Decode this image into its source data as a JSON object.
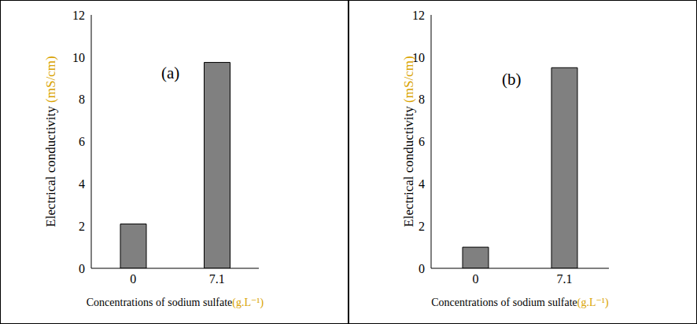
{
  "chart_data": [
    {
      "type": "bar",
      "annotation": "(a)",
      "x_label": "Concentrations of sodium sulfate(g.L⁻¹)",
      "y_label": "Electrical conductivity (mS/cm)",
      "categories": [
        "0",
        "7.1"
      ],
      "values": [
        2.1,
        9.75
      ],
      "color": "#808080",
      "ylim": [
        0,
        12
      ],
      "yticks": [
        0,
        2,
        4,
        6,
        8,
        10,
        12
      ],
      "grid": false
    },
    {
      "type": "bar",
      "annotation": "(b)",
      "x_label": "Concentrations of sodium sulfate(g.L⁻¹)",
      "y_label": "Electrical conductivity (mS/cm)",
      "categories": [
        "0",
        "7.1"
      ],
      "values": [
        1.0,
        9.5
      ],
      "color": "#808080",
      "ylim": [
        0,
        12
      ],
      "yticks": [
        0,
        2,
        4,
        6,
        8,
        10,
        12
      ],
      "grid": false
    }
  ]
}
